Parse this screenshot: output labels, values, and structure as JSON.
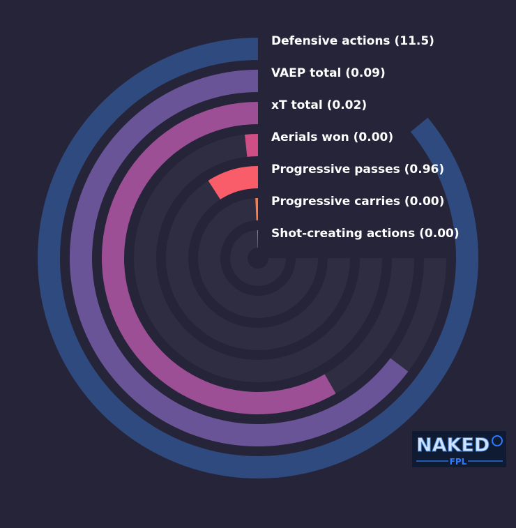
{
  "chart_data": {
    "type": "radial-bar",
    "series": [
      {
        "name": "Defensive actions",
        "label": "Defensive actions (11.5)",
        "value": 11.5,
        "fraction": 0.86,
        "color": "#2e4a7e"
      },
      {
        "name": "VAEP total",
        "label": "VAEP total (0.09)",
        "value": 0.09,
        "fraction": 0.647,
        "color": "#6a5498"
      },
      {
        "name": "xT total",
        "label": "xT total (0.02)",
        "value": 0.02,
        "fraction": 0.583,
        "color": "#9c4f94"
      },
      {
        "name": "Aerials won",
        "label": "Aerials won (0.00)",
        "value": 0.0,
        "fraction": 0.017,
        "color": "#d04e86"
      },
      {
        "name": "Progressive passes",
        "label": "Progressive passes (0.96)",
        "value": 0.96,
        "fraction": 0.091,
        "color": "#f95d6a"
      },
      {
        "name": "Progressive carries",
        "label": "Progressive carries (0.00)",
        "value": 0.0,
        "fraction": 0.007,
        "color": "#ff7c43"
      },
      {
        "name": "Shot-creating actions",
        "label": "Shot-creating actions (0.00)",
        "value": 0.0,
        "fraction": 0.003,
        "color": "#ffa600"
      }
    ],
    "track_fraction": 0.75,
    "colors": {
      "background": "#262438",
      "track": "#2e2d42"
    }
  },
  "logo": {
    "word": "NAKED",
    "sub": "FPL",
    "icon": "skull-icon"
  }
}
